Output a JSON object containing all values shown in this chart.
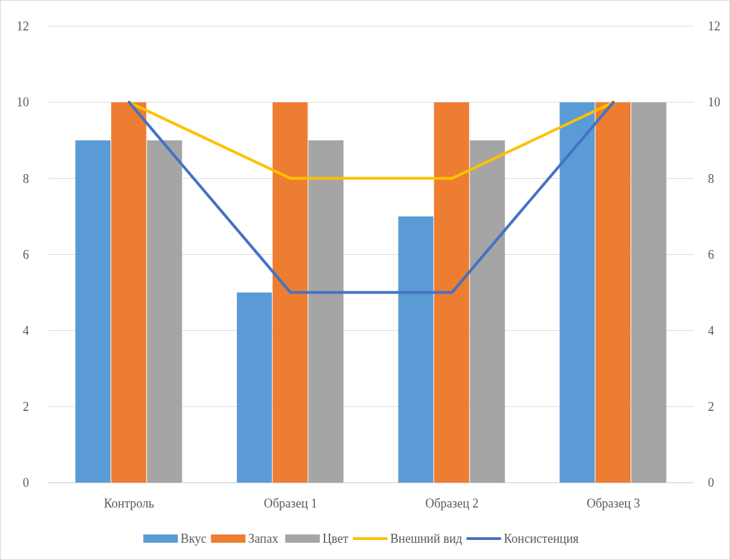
{
  "chart_data": {
    "type": "bar",
    "categories": [
      "Контроль",
      "Образец 1",
      "Образец 2",
      "Образец 3"
    ],
    "series": [
      {
        "name": "Вкус",
        "color": "#5b9bd5",
        "values": [
          9,
          5,
          7,
          10
        ]
      },
      {
        "name": "Запах",
        "color": "#ed7d31",
        "values": [
          10,
          10,
          10,
          10
        ]
      },
      {
        "name": "Цвет",
        "color": "#a5a5a5",
        "values": [
          9,
          9,
          9,
          10
        ]
      },
      {
        "name": "Внешний вид",
        "type": "line",
        "color": "#ffc000",
        "values": [
          10,
          8,
          8,
          10
        ]
      },
      {
        "name": "Консистенция",
        "type": "line",
        "color": "#4472c4",
        "values": [
          10,
          5,
          5,
          10
        ]
      }
    ],
    "ylim": [
      0,
      12
    ],
    "yticks": [
      0,
      2,
      4,
      6,
      8,
      10,
      12
    ],
    "y2lim": [
      0,
      12
    ],
    "y2ticks": [
      0,
      2,
      4,
      6,
      8,
      10,
      12
    ],
    "grid": "y",
    "legend": "bottom",
    "marker": "none",
    "line_style": "solid"
  }
}
